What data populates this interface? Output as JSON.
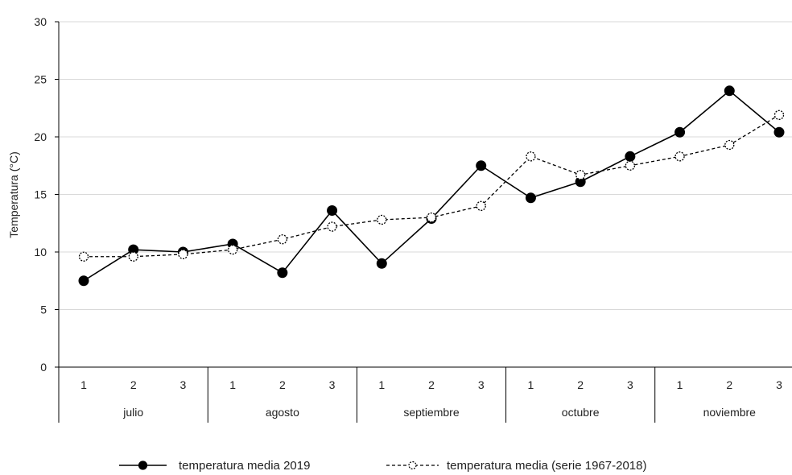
{
  "chart_data": {
    "type": "line",
    "title": "",
    "xlabel": "",
    "ylabel": "Temperatura (°C)",
    "ylim": [
      0,
      30
    ],
    "yticks": [
      0,
      5,
      10,
      15,
      20,
      25,
      30
    ],
    "grid": true,
    "legend": "bottom",
    "groups": [
      {
        "label": "julio",
        "categories": [
          "1",
          "2",
          "3"
        ]
      },
      {
        "label": "agosto",
        "categories": [
          "1",
          "2",
          "3"
        ]
      },
      {
        "label": "septiembre",
        "categories": [
          "1",
          "2",
          "3"
        ]
      },
      {
        "label": "octubre",
        "categories": [
          "1",
          "2",
          "3"
        ]
      },
      {
        "label": "noviembre",
        "categories": [
          "1",
          "2",
          "3"
        ]
      }
    ],
    "series": [
      {
        "name": "temperatura media 2019",
        "style": "solid",
        "marker": "filled-circle",
        "values": [
          7.5,
          10.2,
          10.0,
          10.7,
          8.2,
          13.6,
          9.0,
          12.9,
          17.5,
          14.7,
          16.1,
          18.3,
          20.4,
          24.0,
          20.4
        ]
      },
      {
        "name": "temperatura media (serie 1967-2018)",
        "style": "dashed",
        "marker": "open-circle",
        "values": [
          9.6,
          9.6,
          9.8,
          10.2,
          11.1,
          12.2,
          12.8,
          13.0,
          14.0,
          18.3,
          16.7,
          17.5,
          18.3,
          19.3,
          21.9
        ]
      }
    ],
    "colors": {
      "line": "#000000",
      "grid": "#d9d9d9",
      "axis": "#000000"
    }
  }
}
